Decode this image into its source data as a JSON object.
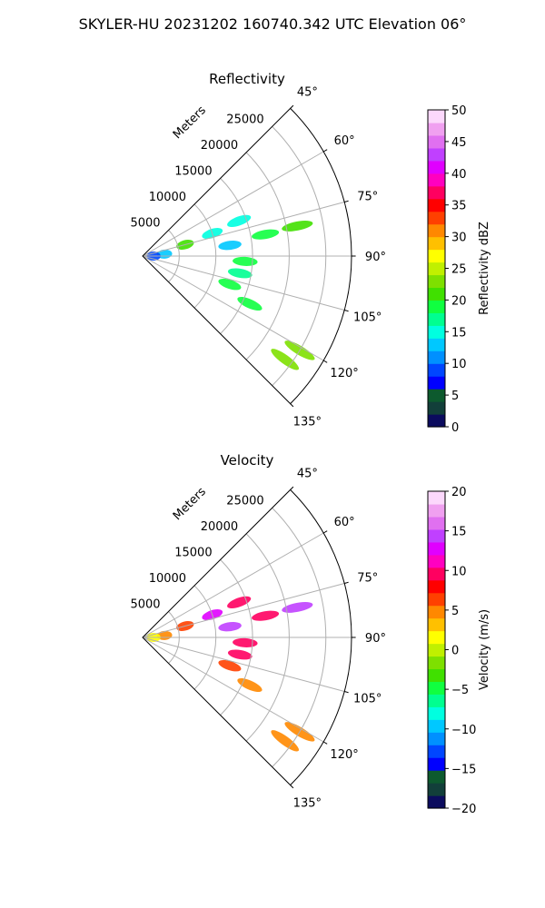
{
  "figure": {
    "suptitle": "SKYLER-HU  20231202  160740.342 UTC Elevation 06°"
  },
  "chart_data": [
    {
      "type": "polar-sector",
      "title": "Reflectivity",
      "radial_label": "Meters",
      "theta_ticks": [
        "45°",
        "60°",
        "75°",
        "90°",
        "105°",
        "120°",
        "135°"
      ],
      "theta_values": [
        45,
        60,
        75,
        90,
        105,
        120,
        135
      ],
      "theta_range": [
        45,
        135
      ],
      "r_ticks": [
        "5000",
        "10000",
        "15000",
        "20000",
        "25000"
      ],
      "r_values": [
        5000,
        10000,
        15000,
        20000,
        25000
      ],
      "r_max": 28500,
      "grid": true,
      "colorbar": {
        "label": "Reflectivity dBZ",
        "range": [
          0,
          50
        ],
        "ticks": [
          "0",
          "5",
          "10",
          "15",
          "20",
          "25",
          "30",
          "35",
          "40",
          "45",
          "50"
        ],
        "tick_values": [
          0,
          5,
          10,
          15,
          20,
          25,
          30,
          35,
          40,
          45,
          50
        ],
        "colors": [
          "#0b0b5e",
          "#123f3a",
          "#0d5a2e",
          "#0000ff",
          "#0046ff",
          "#0090ff",
          "#00c8ff",
          "#00ffe0",
          "#00ff90",
          "#10ff40",
          "#40e000",
          "#7ee000",
          "#c0f000",
          "#ffff00",
          "#ffc000",
          "#ff8800",
          "#ff4000",
          "#ff0000",
          "#ff0060",
          "#ff00c0",
          "#e000ff",
          "#c040ff",
          "#e070f0",
          "#f0a0f0",
          "#fcd8fc"
        ]
      },
      "echo_cells": [
        {
          "az": 79,
          "range": 21500,
          "value": 20
        },
        {
          "az": 70,
          "range": 14000,
          "value": 14
        },
        {
          "az": 72,
          "range": 10000,
          "value": 15
        },
        {
          "az": 75,
          "range": 6000,
          "value": 20
        },
        {
          "az": 80,
          "range": 17000,
          "value": 19
        },
        {
          "az": 83,
          "range": 12000,
          "value": 13
        },
        {
          "az": 85,
          "range": 3000,
          "value": 12
        },
        {
          "az": 90,
          "range": 1500,
          "value": 9
        },
        {
          "az": 93,
          "range": 14000,
          "value": 18
        },
        {
          "az": 100,
          "range": 13500,
          "value": 17
        },
        {
          "az": 108,
          "range": 12500,
          "value": 19
        },
        {
          "az": 114,
          "range": 16000,
          "value": 18
        },
        {
          "az": 121,
          "range": 25000,
          "value": 22
        },
        {
          "az": 126,
          "range": 24000,
          "value": 23
        }
      ]
    },
    {
      "type": "polar-sector",
      "title": "Velocity",
      "radial_label": "Meters",
      "theta_ticks": [
        "45°",
        "60°",
        "75°",
        "90°",
        "105°",
        "120°",
        "135°"
      ],
      "theta_values": [
        45,
        60,
        75,
        90,
        105,
        120,
        135
      ],
      "theta_range": [
        45,
        135
      ],
      "r_ticks": [
        "5000",
        "10000",
        "15000",
        "20000",
        "25000"
      ],
      "r_values": [
        5000,
        10000,
        15000,
        20000,
        25000
      ],
      "r_max": 28500,
      "grid": true,
      "colorbar": {
        "label": "Velocity (m/s)",
        "range": [
          -20,
          20
        ],
        "ticks": [
          "−20",
          "−15",
          "−10",
          "−5",
          "0",
          "5",
          "10",
          "15",
          "20"
        ],
        "tick_values": [
          -20,
          -15,
          -10,
          -5,
          0,
          5,
          10,
          15,
          20
        ],
        "colors": [
          "#0b0b5e",
          "#123f3a",
          "#0d5a2e",
          "#0000ff",
          "#0046ff",
          "#0090ff",
          "#00c8ff",
          "#00ffe0",
          "#00ff90",
          "#10ff40",
          "#40e000",
          "#7ee000",
          "#c0f000",
          "#ffff00",
          "#ffc000",
          "#ff8800",
          "#ff4000",
          "#ff0000",
          "#ff0060",
          "#ff00c0",
          "#e000ff",
          "#c040ff",
          "#e070f0",
          "#f0a0f0",
          "#fcd8fc"
        ]
      },
      "echo_cells": [
        {
          "az": 79,
          "range": 21500,
          "value": 14
        },
        {
          "az": 70,
          "range": 14000,
          "value": 9
        },
        {
          "az": 72,
          "range": 10000,
          "value": 13
        },
        {
          "az": 75,
          "range": 6000,
          "value": 6
        },
        {
          "az": 80,
          "range": 17000,
          "value": 10
        },
        {
          "az": 83,
          "range": 12000,
          "value": 14
        },
        {
          "az": 85,
          "range": 3000,
          "value": 4
        },
        {
          "az": 90,
          "range": 1500,
          "value": 1
        },
        {
          "az": 93,
          "range": 14000,
          "value": 10
        },
        {
          "az": 100,
          "range": 13500,
          "value": 10
        },
        {
          "az": 108,
          "range": 12500,
          "value": 7
        },
        {
          "az": 114,
          "range": 16000,
          "value": 4
        },
        {
          "az": 121,
          "range": 25000,
          "value": 5
        },
        {
          "az": 126,
          "range": 24000,
          "value": 5
        }
      ]
    }
  ]
}
